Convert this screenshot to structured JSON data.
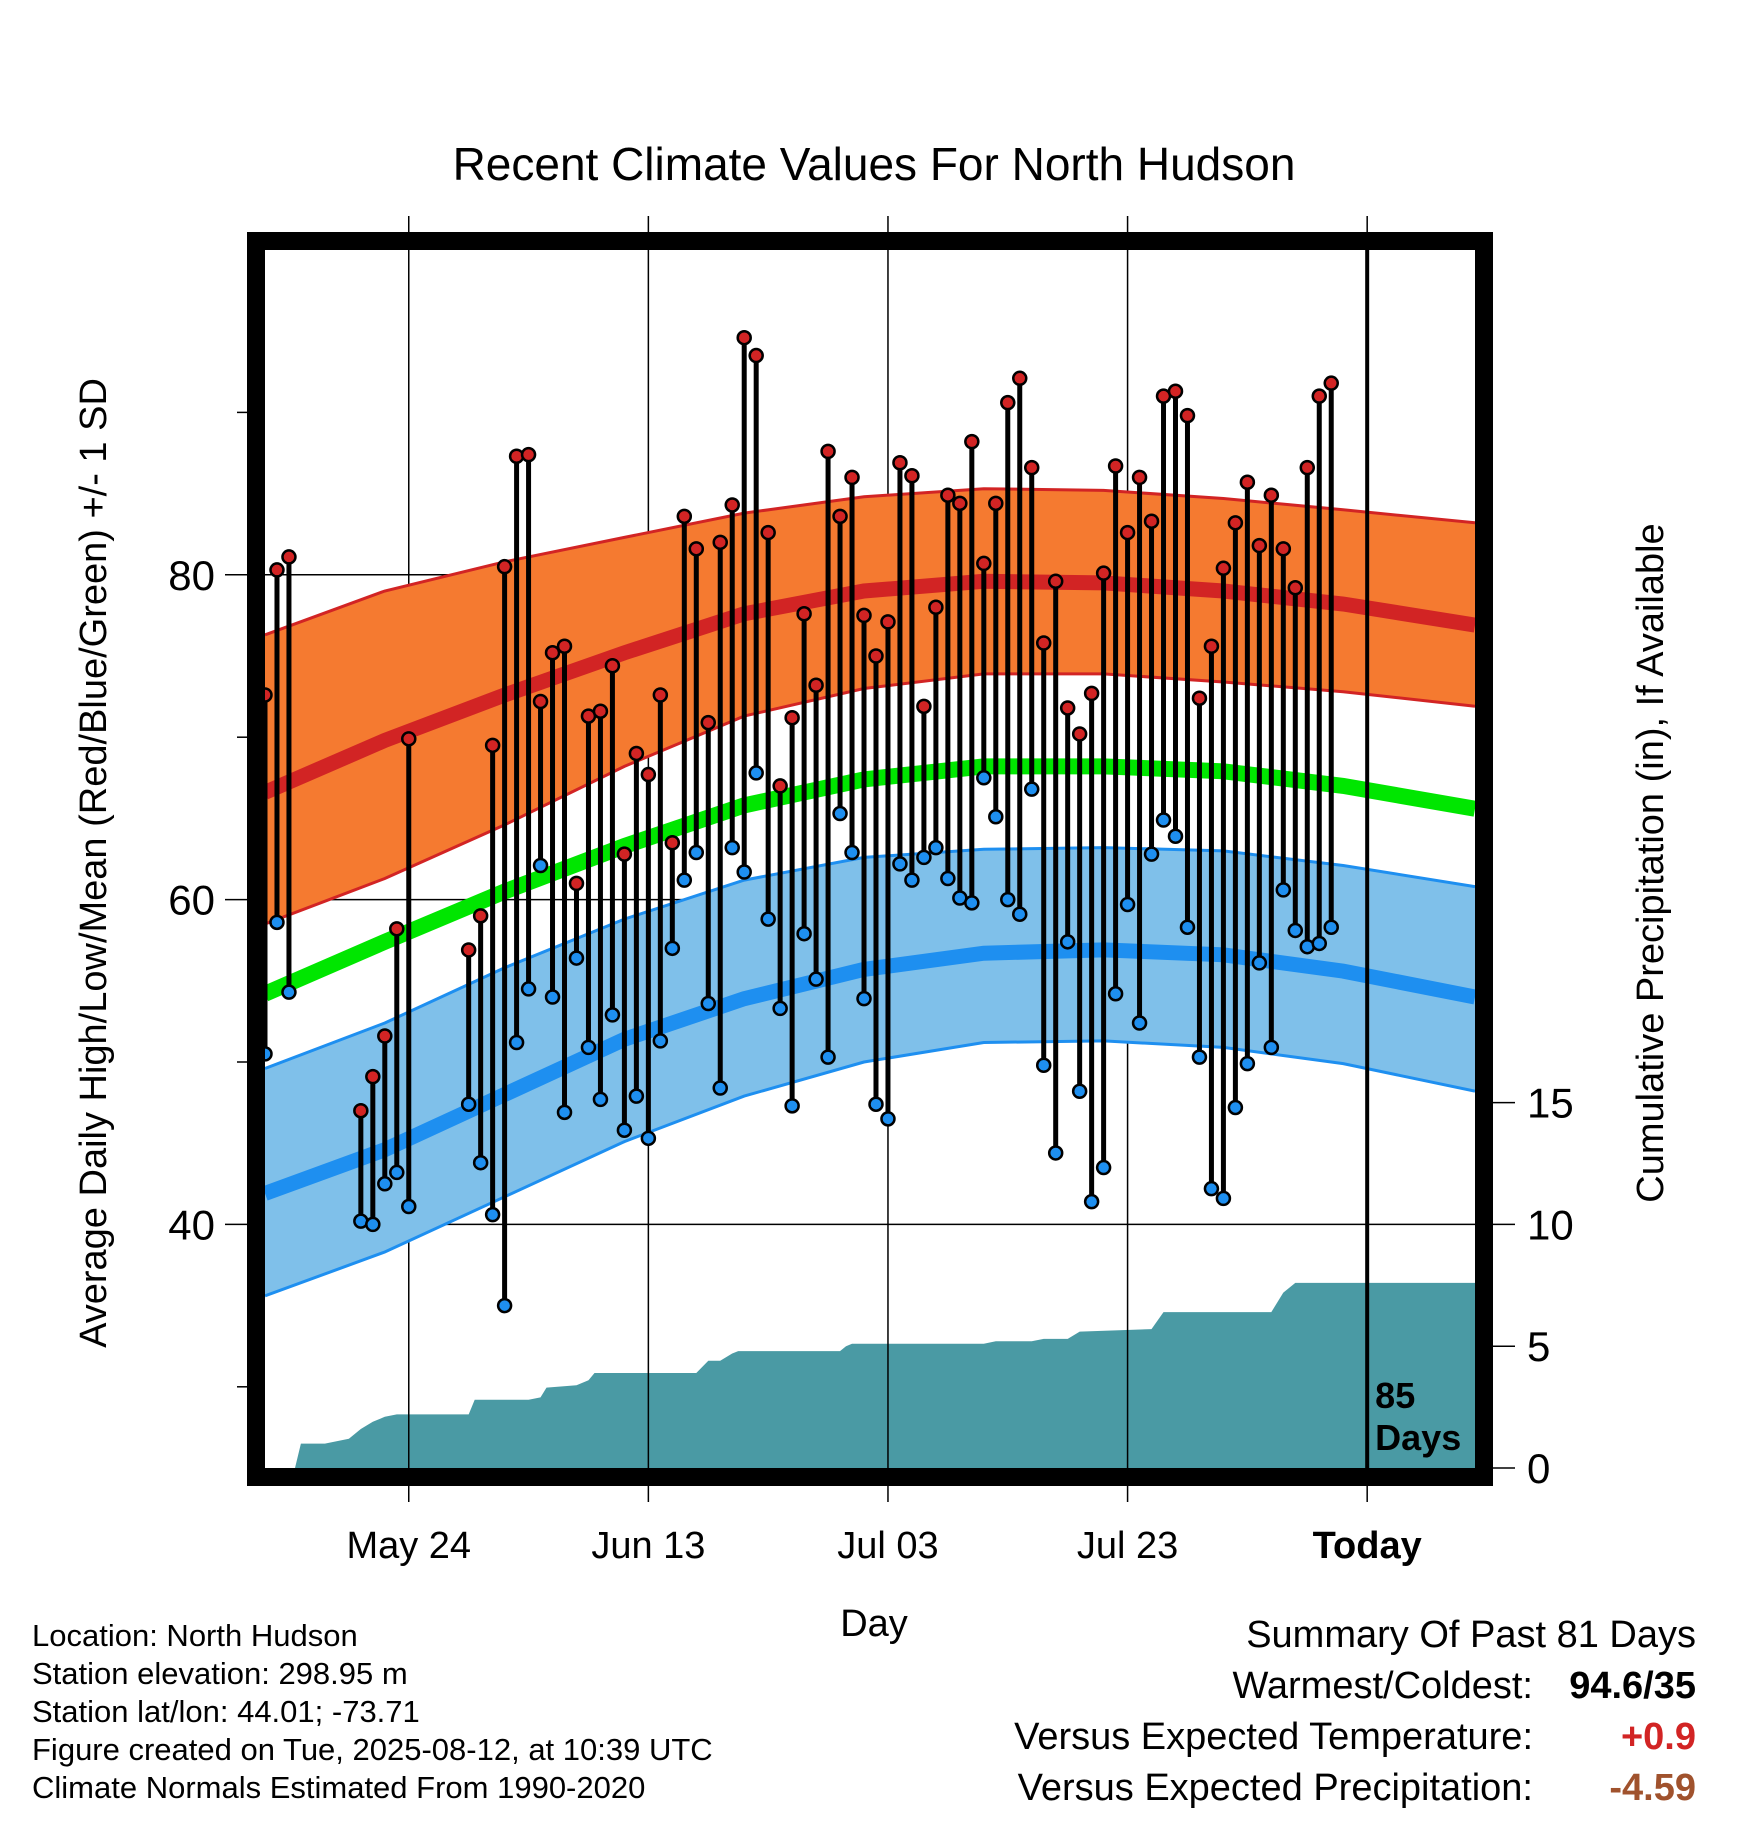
{
  "chart_data": {
    "type": "line",
    "title": "Recent Climate Values For North Hudson",
    "xlabel": "Day",
    "ylabel": "Average Daily High/Low/Mean (Red/Blue/Green) +/- 1 SD",
    "y2label": "Cumulative Precipitation (in), If Available",
    "x_tick_labels": [
      "May 24",
      "Jun 13",
      "Jul 03",
      "Jul 23",
      "Today"
    ],
    "x_tick_days": [
      12,
      32,
      52,
      72,
      92
    ],
    "y_ticks": [
      40,
      60,
      80
    ],
    "y2_ticks": [
      "0",
      "5",
      "10",
      "15"
    ],
    "ylim": [
      25,
      100
    ],
    "y2lim": [
      0,
      50
    ],
    "day_range": [
      0,
      101
    ],
    "today_marker": "85\nDays",
    "normal_high": {
      "days": [
        0,
        10,
        20,
        30,
        40,
        50,
        60,
        70,
        80,
        90,
        101
      ],
      "mean": [
        66.6,
        69.8,
        72.6,
        75.2,
        77.6,
        79.0,
        79.6,
        79.5,
        79.0,
        78.2,
        76.9
      ],
      "plus_sd": [
        76.3,
        79.0,
        80.8,
        82.3,
        83.8,
        84.8,
        85.3,
        85.2,
        84.7,
        84.0,
        83.2
      ],
      "minus_sd": [
        58.5,
        61.3,
        64.6,
        68.2,
        71.3,
        73.0,
        73.9,
        73.9,
        73.4,
        72.8,
        71.9
      ]
    },
    "normal_low": {
      "days": [
        0,
        10,
        20,
        30,
        40,
        50,
        60,
        70,
        80,
        90,
        101
      ],
      "mean": [
        41.9,
        44.6,
        48.0,
        51.4,
        53.9,
        55.7,
        56.7,
        56.9,
        56.6,
        55.6,
        54.0
      ],
      "plus_sd": [
        49.6,
        52.4,
        55.8,
        58.8,
        61.2,
        62.6,
        63.1,
        63.2,
        63.0,
        62.1,
        60.8
      ],
      "minus_sd": [
        35.6,
        38.3,
        41.7,
        45.1,
        47.9,
        50.0,
        51.2,
        51.3,
        50.9,
        49.9,
        48.2
      ]
    },
    "normal_mean": {
      "days": [
        0,
        10,
        20,
        30,
        40,
        50,
        60,
        70,
        80,
        90,
        101
      ],
      "values": [
        54.2,
        57.4,
        60.5,
        63.3,
        65.8,
        67.4,
        68.2,
        68.2,
        67.9,
        67.0,
        65.6
      ]
    },
    "daily": [
      {
        "day": 0,
        "high": 72.6,
        "low": 50.5
      },
      {
        "day": 1,
        "high": 80.3,
        "low": 58.6
      },
      {
        "day": 2,
        "high": 81.1,
        "low": 54.3
      },
      {
        "day": 8,
        "high": 47.0,
        "low": 40.2
      },
      {
        "day": 9,
        "high": 49.1,
        "low": 40.0
      },
      {
        "day": 10,
        "high": 51.6,
        "low": 42.5
      },
      {
        "day": 11,
        "high": 58.2,
        "low": 43.2
      },
      {
        "day": 12,
        "high": 69.9,
        "low": 41.1
      },
      {
        "day": 17,
        "high": 56.9,
        "low": 47.4
      },
      {
        "day": 18,
        "high": 59.0,
        "low": 43.8
      },
      {
        "day": 19,
        "high": 69.5,
        "low": 40.6
      },
      {
        "day": 20,
        "high": 80.5,
        "low": 35.0
      },
      {
        "day": 21,
        "high": 87.3,
        "low": 51.2
      },
      {
        "day": 22,
        "high": 87.4,
        "low": 54.5
      },
      {
        "day": 23,
        "high": 72.2,
        "low": 62.1
      },
      {
        "day": 24,
        "high": 75.2,
        "low": 54.0
      },
      {
        "day": 25,
        "high": 75.6,
        "low": 46.9
      },
      {
        "day": 26,
        "high": 61.0,
        "low": 56.4
      },
      {
        "day": 27,
        "high": 71.3,
        "low": 50.9
      },
      {
        "day": 28,
        "high": 71.6,
        "low": 47.7
      },
      {
        "day": 29,
        "high": 74.4,
        "low": 52.9
      },
      {
        "day": 30,
        "high": 62.8,
        "low": 45.8
      },
      {
        "day": 31,
        "high": 69.0,
        "low": 47.9
      },
      {
        "day": 32,
        "high": 67.7,
        "low": 45.3
      },
      {
        "day": 33,
        "high": 72.6,
        "low": 51.3
      },
      {
        "day": 34,
        "high": 63.5,
        "low": 57.0
      },
      {
        "day": 35,
        "high": 83.6,
        "low": 61.2
      },
      {
        "day": 36,
        "high": 81.6,
        "low": 62.9
      },
      {
        "day": 37,
        "high": 70.9,
        "low": 53.6
      },
      {
        "day": 38,
        "high": 82.0,
        "low": 48.4
      },
      {
        "day": 39,
        "high": 84.3,
        "low": 63.2
      },
      {
        "day": 40,
        "high": 94.6,
        "low": 61.7
      },
      {
        "day": 41,
        "high": 93.5,
        "low": 67.8
      },
      {
        "day": 42,
        "high": 82.6,
        "low": 58.8
      },
      {
        "day": 43,
        "high": 67.0,
        "low": 53.3
      },
      {
        "day": 44,
        "high": 71.2,
        "low": 47.3
      },
      {
        "day": 45,
        "high": 77.6,
        "low": 57.9
      },
      {
        "day": 46,
        "high": 73.2,
        "low": 55.1
      },
      {
        "day": 47,
        "high": 87.6,
        "low": 50.3
      },
      {
        "day": 48,
        "high": 83.6,
        "low": 65.3
      },
      {
        "day": 49,
        "high": 86.0,
        "low": 62.9
      },
      {
        "day": 50,
        "high": 77.5,
        "low": 53.9
      },
      {
        "day": 51,
        "high": 75.0,
        "low": 47.4
      },
      {
        "day": 52,
        "high": 77.1,
        "low": 46.5
      },
      {
        "day": 53,
        "high": 86.9,
        "low": 62.2
      },
      {
        "day": 54,
        "high": 86.1,
        "low": 61.2
      },
      {
        "day": 55,
        "high": 71.9,
        "low": 62.6
      },
      {
        "day": 56,
        "high": 78.0,
        "low": 63.2
      },
      {
        "day": 57,
        "high": 84.9,
        "low": 61.3
      },
      {
        "day": 58,
        "high": 84.4,
        "low": 60.1
      },
      {
        "day": 59,
        "high": 88.2,
        "low": 59.8
      },
      {
        "day": 60,
        "high": 80.7,
        "low": 67.5
      },
      {
        "day": 61,
        "high": 84.4,
        "low": 65.1
      },
      {
        "day": 62,
        "high": 90.6,
        "low": 60.0
      },
      {
        "day": 63,
        "high": 92.1,
        "low": 59.1
      },
      {
        "day": 64,
        "high": 86.6,
        "low": 66.8
      },
      {
        "day": 65,
        "high": 75.8,
        "low": 49.8
      },
      {
        "day": 66,
        "high": 79.6,
        "low": 44.4
      },
      {
        "day": 67,
        "high": 71.8,
        "low": 57.4
      },
      {
        "day": 68,
        "high": 70.2,
        "low": 48.2
      },
      {
        "day": 69,
        "high": 72.7,
        "low": 41.4
      },
      {
        "day": 70,
        "high": 80.1,
        "low": 43.5
      },
      {
        "day": 71,
        "high": 86.7,
        "low": 54.2
      },
      {
        "day": 72,
        "high": 82.6,
        "low": 59.7
      },
      {
        "day": 73,
        "high": 86.0,
        "low": 52.4
      },
      {
        "day": 74,
        "high": 83.3,
        "low": 62.8
      },
      {
        "day": 75,
        "high": 91.0,
        "low": 64.9
      },
      {
        "day": 76,
        "high": 91.3,
        "low": 63.9
      },
      {
        "day": 77,
        "high": 89.8,
        "low": 58.3
      },
      {
        "day": 78,
        "high": 72.4,
        "low": 50.3
      },
      {
        "day": 79,
        "high": 75.6,
        "low": 42.2
      },
      {
        "day": 80,
        "high": 80.4,
        "low": 41.6
      },
      {
        "day": 81,
        "high": 83.2,
        "low": 47.2
      },
      {
        "day": 82,
        "high": 85.7,
        "low": 49.9
      },
      {
        "day": 83,
        "high": 81.8,
        "low": 56.1
      },
      {
        "day": 84,
        "high": 84.9,
        "low": 50.9
      },
      {
        "day": 85,
        "high": 81.6,
        "low": 60.6
      },
      {
        "day": 86,
        "high": 79.2,
        "low": 58.1
      },
      {
        "day": 87,
        "high": 86.6,
        "low": 57.1
      },
      {
        "day": 88,
        "high": 91.0,
        "low": 57.3
      },
      {
        "day": 89,
        "high": 91.8,
        "low": 58.3
      }
    ],
    "precip_cumulative": {
      "days": [
        2.5,
        3,
        5,
        7,
        8,
        9,
        10,
        11,
        17,
        17.5,
        22,
        23,
        23.5,
        26,
        27,
        27.5,
        36,
        37,
        38,
        39,
        39.5,
        48,
        48.5,
        49,
        60,
        61,
        64,
        65,
        67,
        68,
        74,
        75,
        84,
        85,
        86,
        101
      ],
      "values": [
        0,
        1.0,
        1.0,
        1.2,
        1.6,
        1.9,
        2.1,
        2.2,
        2.2,
        2.8,
        2.8,
        2.9,
        3.3,
        3.4,
        3.6,
        3.9,
        3.9,
        4.4,
        4.4,
        4.7,
        4.8,
        4.8,
        5.0,
        5.1,
        5.1,
        5.2,
        5.2,
        5.3,
        5.3,
        5.6,
        5.7,
        6.4,
        6.4,
        7.2,
        7.6,
        7.6
      ]
    },
    "colors": {
      "high_band": "#f57a30",
      "high_band_edge": "#d22424",
      "high_mean": "#d22424",
      "low_band": "#7fc0ea",
      "low_band_edge": "#1e8ff0",
      "low_mean": "#1e8ff0",
      "mean_line": "#00e600",
      "precip": "#4a9aa4",
      "high_dot": "#d22424",
      "low_dot": "#1e8ff0"
    }
  },
  "info": {
    "location": "Location: North Hudson",
    "elevation": "Station elevation: 298.95 m",
    "latlon": "Station lat/lon: 44.01; -73.71",
    "created": "Figure created on Tue, 2025-08-12, at 10:39 UTC",
    "normals": "Climate Normals Estimated From 1990-2020"
  },
  "summary": {
    "title": "Summary Of Past 81 Days",
    "warm_cold_label": "Warmest/Coldest:",
    "warm_cold_value": "94.6/35",
    "temp_label": "Versus Expected Temperature:",
    "temp_value": "+0.9",
    "temp_color": "#d22424",
    "precip_label": "Versus Expected Precipitation:",
    "precip_value": "-4.59",
    "precip_color": "#a0522d"
  }
}
